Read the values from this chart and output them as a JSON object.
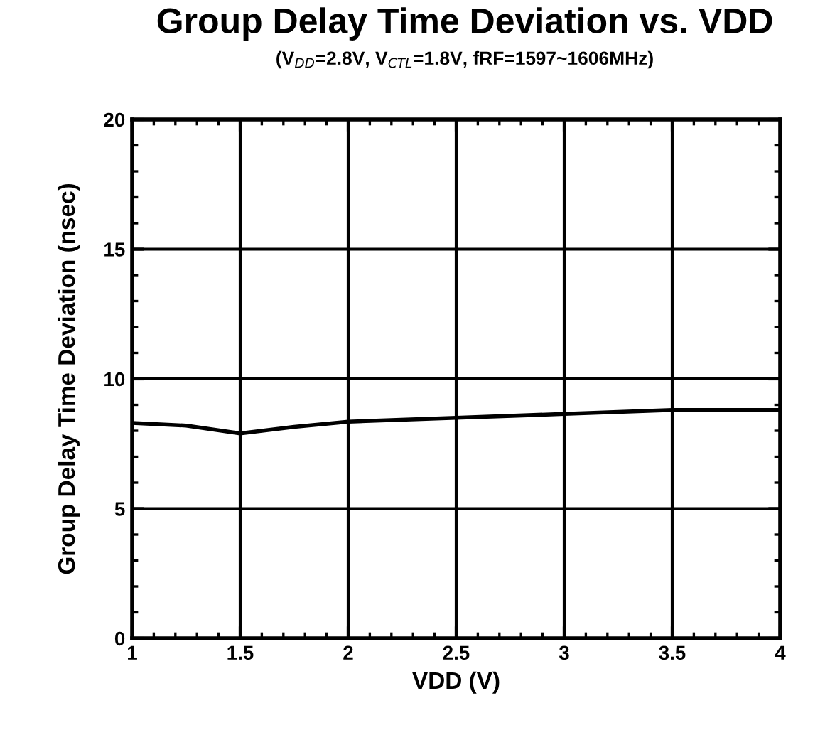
{
  "chart_data": {
    "type": "line",
    "title": "Group Delay Time Deviation vs. VDD",
    "subtitle": "(V$_{DD}$=2.8V, V$_{CTL}$=1.8V, fRF=1597~1606MHz)",
    "xlabel": "VDD (V)",
    "ylabel": "Group Delay Time Deviation (nsec)",
    "x": [
      1,
      1.25,
      1.5,
      1.75,
      2,
      2.5,
      3,
      3.5,
      4
    ],
    "series": [
      {
        "color": "#000000",
        "values": [
          8.3,
          8.2,
          7.9,
          8.15,
          8.35,
          8.5,
          8.65,
          8.8,
          8.8
        ]
      }
    ],
    "xlim": [
      1,
      4
    ],
    "xticks": [
      1,
      1.5,
      2,
      2.5,
      3,
      3.5,
      4
    ],
    "ylim": [
      0,
      20
    ],
    "yticks": [
      0,
      5,
      10,
      15,
      20
    ],
    "grid": true,
    "legend": false,
    "marker": "none",
    "line_style": "solid"
  }
}
